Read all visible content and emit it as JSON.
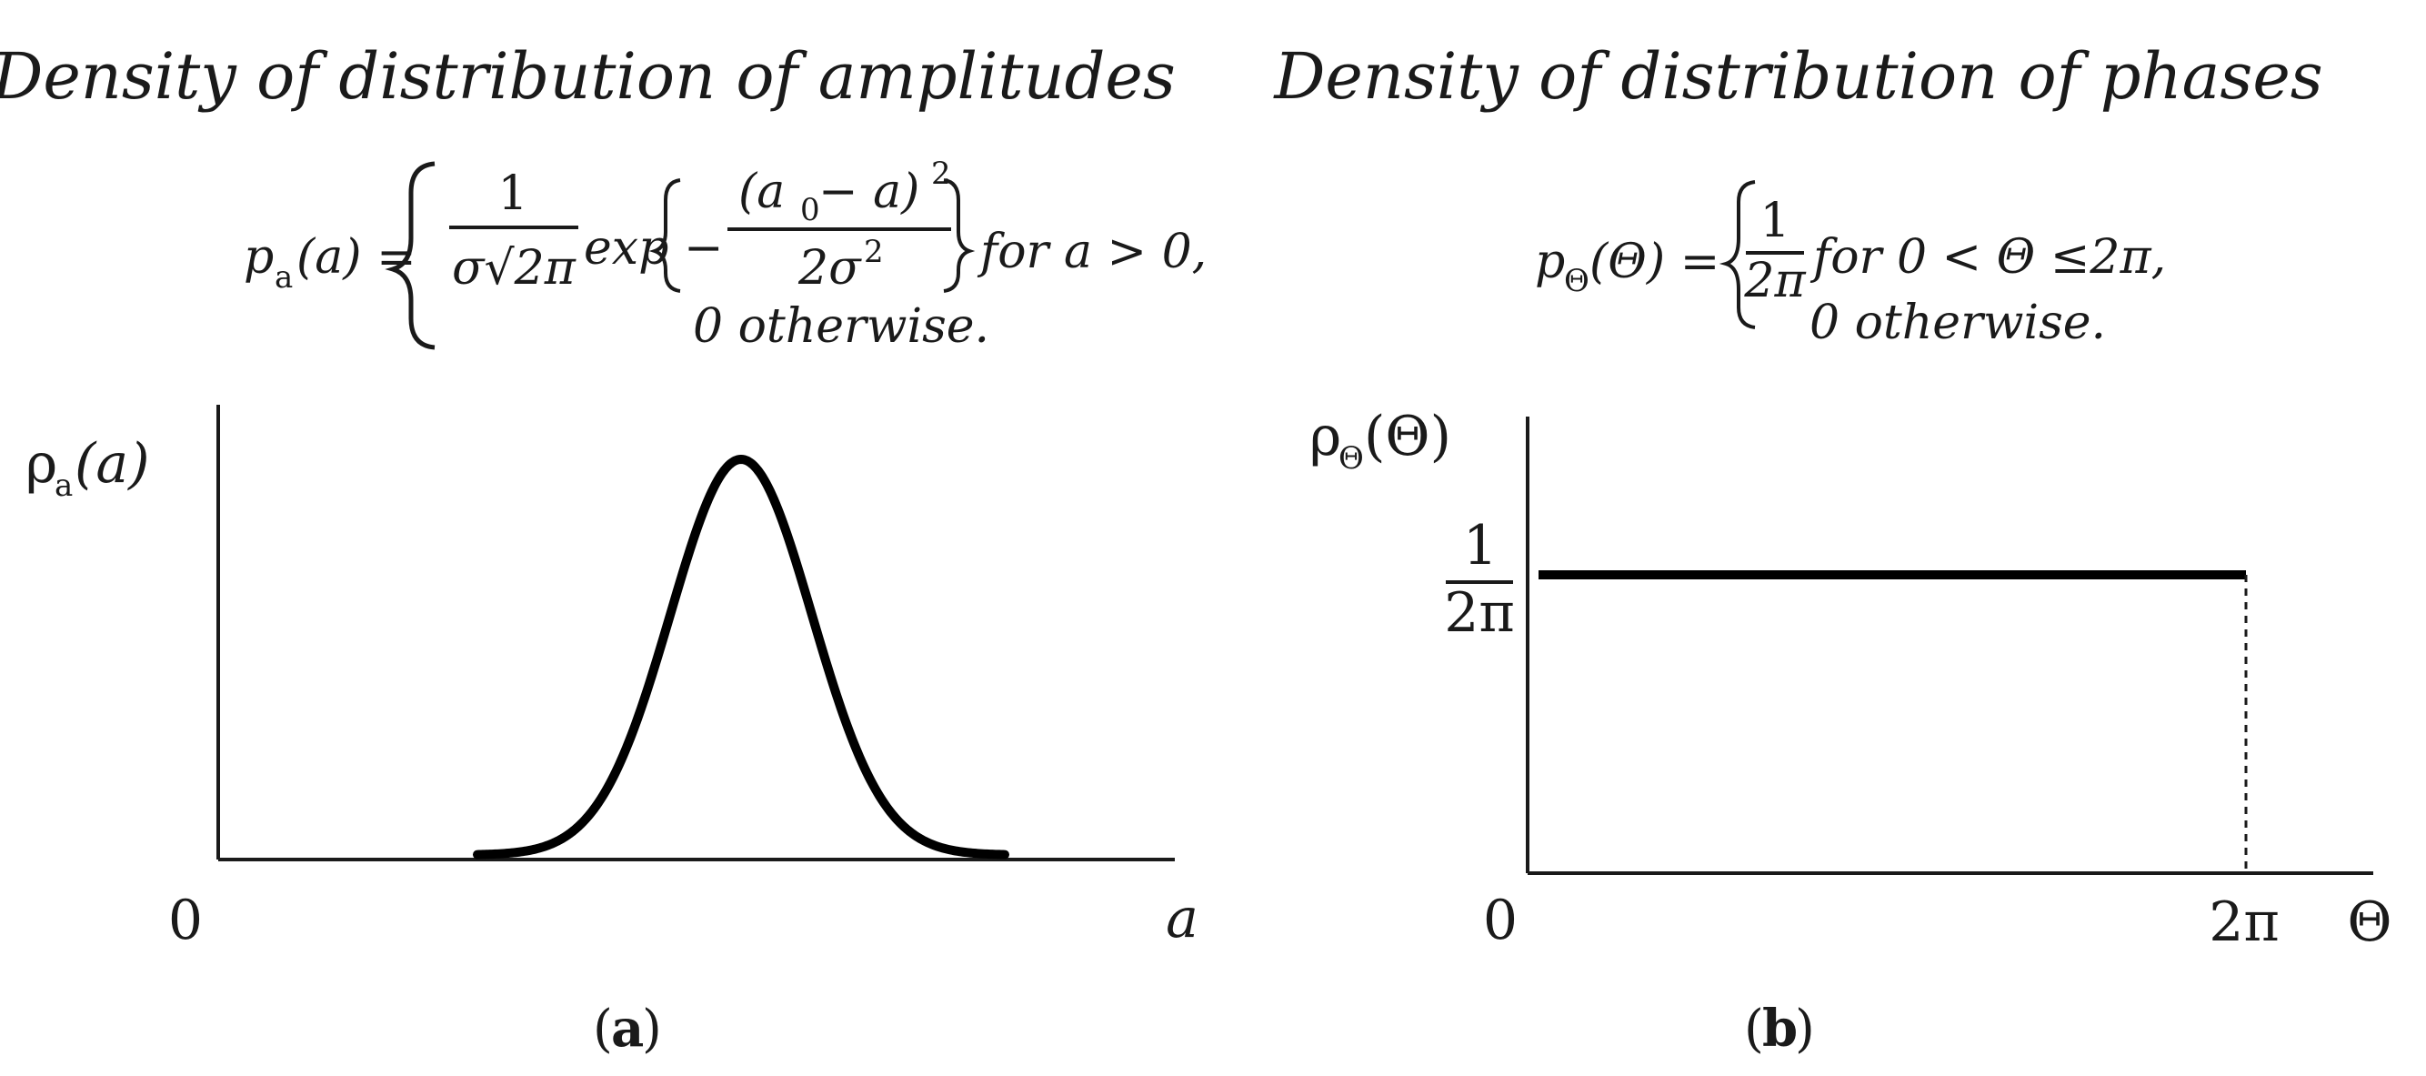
{
  "panel_a": {
    "title": "Density of distribution of amplitudes",
    "formula": {
      "lhs": "p",
      "lhs_sub": "a",
      "lhs_arg": "(a) =",
      "frac1_num": "1",
      "frac1_den": "σ√2π",
      "exp_word": "exp",
      "frac2_num": "(a",
      "frac2_num_sub": "0",
      "frac2_num_rest": " − a)",
      "frac2_num_sup": "2",
      "frac2_den": "2σ",
      "frac2_den_sup": "2",
      "condition1": "for a > 0,",
      "otherwise": "0 otherwise."
    },
    "ylabel": "ρ",
    "ylabel_sub": "a",
    "ylabel_arg": "(a)",
    "xtick_origin": "0",
    "xlabel": "a",
    "panel_label_open": "(",
    "panel_label_letter": "a",
    "panel_label_close": ")"
  },
  "panel_b": {
    "title": "Density of distribution of phases",
    "formula": {
      "lhs": "p",
      "lhs_sub": "Θ",
      "lhs_arg": "(Θ) =",
      "frac_num": "1",
      "frac_den": "2π",
      "condition1": "for 0 < Θ ≤2π,",
      "otherwise": "0 otherwise."
    },
    "ylabel": "ρ",
    "ylabel_sub": "Θ",
    "ylabel_arg": "(Θ)",
    "ytick_num": "1",
    "ytick_den": "2π",
    "xtick_origin": "0",
    "xtick_end": "2π",
    "xlabel": "Θ",
    "panel_label_open": "(",
    "panel_label_letter": "b",
    "panel_label_close": ")"
  },
  "chart_data": [
    {
      "type": "line",
      "description_of_curve": "Gaussian (normal) density bell curve",
      "x_axis_label": "a",
      "y_axis_label": "ρa(a)"
    },
    {
      "type": "line",
      "description_of_curve": "uniform density on (0, 2π]",
      "x_ticks": [
        "0",
        "2π"
      ],
      "y_ticks": [
        "1/2π"
      ],
      "x_axis_label": "Θ",
      "y_axis_label": "ρΘ(Θ)"
    }
  ],
  "colors": {
    "ink": "#1a1a1a",
    "background": "#ffffff"
  }
}
